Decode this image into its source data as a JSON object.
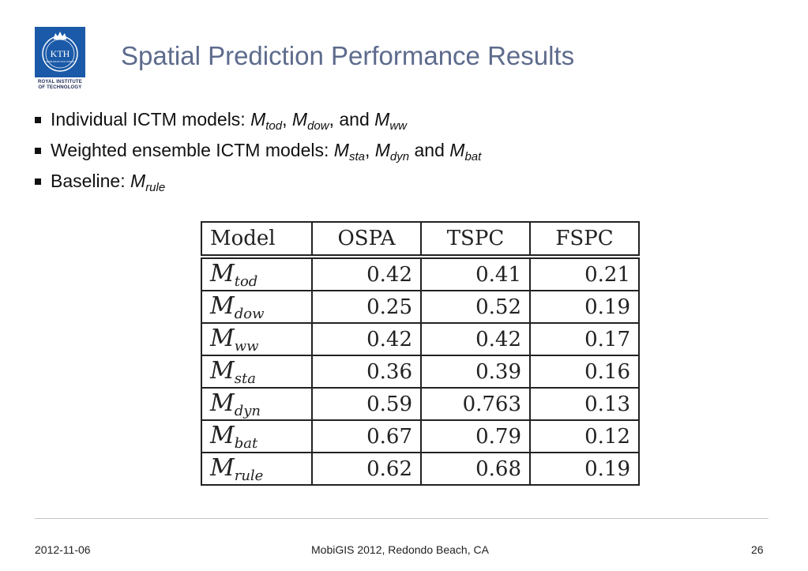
{
  "logo": {
    "text": "KTH",
    "small_text": "VETENSKAP OCH KONST",
    "caption_line1": "ROYAL INSTITUTE",
    "caption_line2": "OF TECHNOLOGY",
    "color": "#1b5aa8"
  },
  "title": "Spatial Prediction Performance Results",
  "bullets": [
    {
      "prefix": "Individual ICTM models: ",
      "models": [
        {
          "base": "M",
          "sub": "tod",
          "sep": ", "
        },
        {
          "base": "M",
          "sub": "dow",
          "sep": ", and "
        },
        {
          "base": "M",
          "sub": "ww",
          "sep": ""
        }
      ]
    },
    {
      "prefix": "Weighted ensemble ICTM models: ",
      "models": [
        {
          "base": "M",
          "sub": "sta",
          "sep": ", "
        },
        {
          "base": "M",
          "sub": "dyn",
          "sep": " and "
        },
        {
          "base": "M",
          "sub": "bat",
          "sep": ""
        }
      ]
    },
    {
      "prefix": "Baseline: ",
      "models": [
        {
          "base": "M",
          "sub": "rule",
          "sep": ""
        }
      ]
    }
  ],
  "table": {
    "headers": [
      "Model",
      "OSPA",
      "TSPC",
      "FSPC"
    ],
    "rows": [
      {
        "model": "M",
        "sub": "tod",
        "ospa": "0.42",
        "tspc": "0.41",
        "fspc": "0.21"
      },
      {
        "model": "M",
        "sub": "dow",
        "ospa": "0.25",
        "tspc": "0.52",
        "fspc": "0.19"
      },
      {
        "model": "M",
        "sub": "ww",
        "ospa": "0.42",
        "tspc": "0.42",
        "fspc": "0.17"
      },
      {
        "model": "M",
        "sub": "sta",
        "ospa": "0.36",
        "tspc": "0.39",
        "fspc": "0.16"
      },
      {
        "model": "M",
        "sub": "dyn",
        "ospa": "0.59",
        "tspc": "0.763",
        "fspc": "0.13"
      },
      {
        "model": "M",
        "sub": "bat",
        "ospa": "0.67",
        "tspc": "0.79",
        "fspc": "0.12"
      },
      {
        "model": "M",
        "sub": "rule",
        "ospa": "0.62",
        "tspc": "0.68",
        "fspc": "0.19"
      }
    ]
  },
  "footer": {
    "date": "2012-11-06",
    "event": "MobiGIS 2012, Redondo Beach, CA",
    "page": "26"
  }
}
